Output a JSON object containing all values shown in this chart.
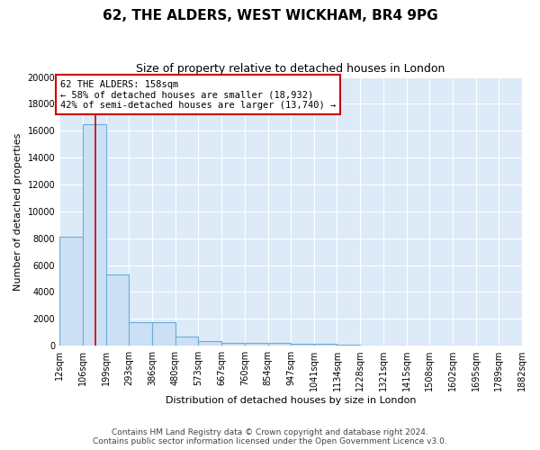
{
  "title_line1": "62, THE ALDERS, WEST WICKHAM, BR4 9PG",
  "title_line2": "Size of property relative to detached houses in London",
  "xlabel": "Distribution of detached houses by size in London",
  "ylabel": "Number of detached properties",
  "bar_color": "#cce0f5",
  "bar_edge_color": "#6aaed6",
  "background_color": "#ddeaf7",
  "grid_color": "#ffffff",
  "bin_edges": [
    12,
    106,
    199,
    293,
    386,
    480,
    573,
    667,
    760,
    854,
    947,
    1041,
    1134,
    1228,
    1321,
    1415,
    1508,
    1602,
    1695,
    1789,
    1882
  ],
  "bar_heights": [
    8100,
    16500,
    5300,
    1750,
    1750,
    700,
    310,
    230,
    200,
    190,
    150,
    130,
    100,
    0,
    0,
    0,
    0,
    0,
    0,
    0
  ],
  "property_size": 158,
  "annotation_text": "62 THE ALDERS: 158sqm\n← 58% of detached houses are smaller (18,932)\n42% of semi-detached houses are larger (13,740) →",
  "vline_color": "#cc0000",
  "annotation_box_edge_color": "#cc0000",
  "ylim": [
    0,
    20000
  ],
  "yticks": [
    0,
    2000,
    4000,
    6000,
    8000,
    10000,
    12000,
    14000,
    16000,
    18000,
    20000
  ],
  "tick_labels": [
    "12sqm",
    "106sqm",
    "199sqm",
    "293sqm",
    "386sqm",
    "480sqm",
    "573sqm",
    "667sqm",
    "760sqm",
    "854sqm",
    "947sqm",
    "1041sqm",
    "1134sqm",
    "1228sqm",
    "1321sqm",
    "1415sqm",
    "1508sqm",
    "1602sqm",
    "1695sqm",
    "1789sqm",
    "1882sqm"
  ],
  "footer_text": "Contains HM Land Registry data © Crown copyright and database right 2024.\nContains public sector information licensed under the Open Government Licence v3.0.",
  "title_fontsize": 11,
  "subtitle_fontsize": 9,
  "axis_label_fontsize": 8,
  "tick_fontsize": 7,
  "annotation_fontsize": 7.5,
  "footer_fontsize": 6.5
}
